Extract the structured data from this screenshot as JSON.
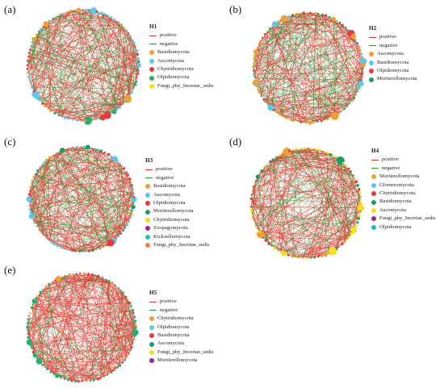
{
  "colors": {
    "positive": "#e8302a",
    "negative": "#2a9a3a",
    "Basidiomycota": "#f0a030",
    "Ascomycota": "#5cc8e8",
    "Chytridiomycota": "#e83a3a",
    "Olpidiomycota": "#22b070",
    "Fungi_phy_Incertae_sedis": "#f5e020",
    "Mortierellomycota": "#1a9e68",
    "Zoopagomycota": "#a020a0",
    "Kickxellomycota": "#20c0b0",
    "Glomeromycota": "#5cc8e8",
    "Glomeromycota_H4": "#60c4ea"
  },
  "panels": [
    {
      "label": "(a)",
      "title": "H1",
      "legend": [
        {
          "type": "line",
          "text": "positive",
          "color": "#e8302a"
        },
        {
          "type": "line",
          "text": "negative",
          "color": "#2a9a3a"
        },
        {
          "type": "dot",
          "text": "Basidiomycota",
          "color": "#f0a030"
        },
        {
          "type": "dot",
          "text": "Ascomycota",
          "color": "#5cc8e8"
        },
        {
          "type": "dot",
          "text": "Chytridiomycota",
          "color": "#e83a3a"
        },
        {
          "type": "dot",
          "text": "Olpidiomycota",
          "color": "#22b070"
        },
        {
          "type": "dot",
          "text": "Fungi_phy_Incertae_sedis",
          "color": "#f5e020"
        }
      ],
      "node_colors": [
        "#5cc8e8",
        "#5cc8e8",
        "#f0a030",
        "#22b070",
        "#e83a3a",
        "#5cc8e8"
      ]
    },
    {
      "label": "(b)",
      "title": "H2",
      "legend": [
        {
          "type": "line",
          "text": "positive",
          "color": "#e8302a"
        },
        {
          "type": "line",
          "text": "negative",
          "color": "#2a9a3a"
        },
        {
          "type": "dot",
          "text": "Ascomycota",
          "color": "#f0a030"
        },
        {
          "type": "dot",
          "text": "Basidiomycota",
          "color": "#5cc8e8"
        },
        {
          "type": "dot",
          "text": "Olpidiomycota",
          "color": "#e83a3a"
        },
        {
          "type": "dot",
          "text": "Mortierellomycota",
          "color": "#1a9e68"
        }
      ],
      "node_colors": [
        "#f0a030",
        "#f0a030",
        "#5cc8e8",
        "#e83a3a",
        "#1a9e68"
      ]
    },
    {
      "label": "(c)",
      "title": "H3",
      "legend": [
        {
          "type": "line",
          "text": "positive",
          "color": "#e8302a"
        },
        {
          "type": "line",
          "text": "negative",
          "color": "#2a9a3a"
        },
        {
          "type": "dot",
          "text": "Basidiomycota",
          "color": "#f0a030"
        },
        {
          "type": "dot",
          "text": "Ascomycota",
          "color": "#5cc8e8"
        },
        {
          "type": "dot",
          "text": "Olpidiomycota",
          "color": "#e83a3a"
        },
        {
          "type": "dot",
          "text": "Mortierellomycota",
          "color": "#1a9e68"
        },
        {
          "type": "dot",
          "text": "Chytridiomycota",
          "color": "#f5e020"
        },
        {
          "type": "dot",
          "text": "Zoopagomycota",
          "color": "#a020a0"
        },
        {
          "type": "dot",
          "text": "Kickxellomycota",
          "color": "#20c0b0"
        },
        {
          "type": "dot",
          "text": "Fungi_phy_Incertae_sedis",
          "color": "#f08050"
        }
      ],
      "node_colors": [
        "#5cc8e8",
        "#5cc8e8",
        "#5cc8e8",
        "#f0a030",
        "#1a9e68",
        "#e83a3a"
      ]
    },
    {
      "label": "(d)",
      "title": "H4",
      "legend": [
        {
          "type": "line",
          "text": "positive",
          "color": "#e8302a"
        },
        {
          "type": "line",
          "text": "negative",
          "color": "#2a9a3a"
        },
        {
          "type": "dot",
          "text": "Mortierellomycota",
          "color": "#f0a030"
        },
        {
          "type": "dot",
          "text": "Glomeromycota",
          "color": "#60c4ea"
        },
        {
          "type": "dot",
          "text": "Chytridiomycota",
          "color": "#e83a3a"
        },
        {
          "type": "dot",
          "text": "Basidiomycota",
          "color": "#1a9e68"
        },
        {
          "type": "dot",
          "text": "Ascomycota",
          "color": "#f5e020"
        },
        {
          "type": "dot",
          "text": "Fungi_phy_Incertae_sedis",
          "color": "#a020a0"
        },
        {
          "type": "dot",
          "text": "Olpidiomycota",
          "color": "#20c0b0"
        }
      ],
      "node_colors": [
        "#f5e020",
        "#f5e020",
        "#f5e020",
        "#f0a030",
        "#1a9e68",
        "#e83a3a"
      ]
    },
    {
      "label": "(e)",
      "title": "H5",
      "legend": [
        {
          "type": "line",
          "text": "positive",
          "color": "#e8302a"
        },
        {
          "type": "line",
          "text": "negative",
          "color": "#2a9a3a"
        },
        {
          "type": "dot",
          "text": "Chytridiomycota",
          "color": "#f0a030"
        },
        {
          "type": "dot",
          "text": "Olpidiomycota",
          "color": "#5cc8e8"
        },
        {
          "type": "dot",
          "text": "Basidiomycota",
          "color": "#e83a3a"
        },
        {
          "type": "dot",
          "text": "Ascomycota",
          "color": "#1a9e68"
        },
        {
          "type": "dot",
          "text": "Fungi_phy_Incertae_sedis",
          "color": "#f5e020"
        },
        {
          "type": "dot",
          "text": "Mortierellomycota",
          "color": "#a020a0"
        }
      ],
      "node_colors": [
        "#22b070",
        "#22b070",
        "#22b070",
        "#e83a3a",
        "#f0a030"
      ]
    }
  ]
}
